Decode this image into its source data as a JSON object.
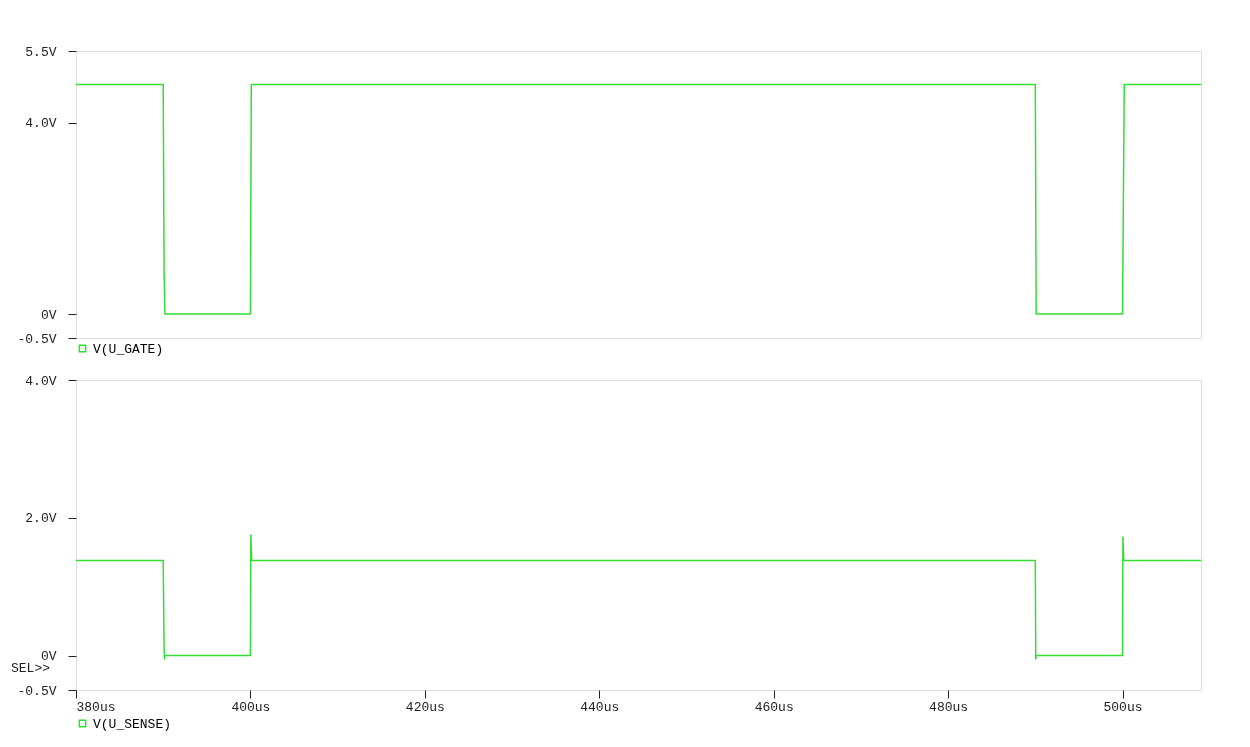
{
  "chart_data": [
    {
      "type": "line",
      "x": [
        380,
        390,
        390.1,
        390.2,
        400,
        400.1,
        490,
        490.1,
        500,
        500.2,
        509
      ],
      "series": [
        {
          "name": "V(U_GATE)",
          "color": "#33dd33",
          "values": [
            4.8,
            4.8,
            0.9,
            0,
            0,
            4.8,
            4.8,
            0,
            0,
            4.8,
            4.8
          ]
        }
      ],
      "xlim": [
        380,
        509
      ],
      "ylim": [
        -0.5,
        5.5
      ],
      "yticks": [
        {
          "value": -0.5,
          "label": "-0.5V"
        },
        {
          "value": 0,
          "label": "0V"
        },
        {
          "value": 4.0,
          "label": "4.0V"
        },
        {
          "value": 5.5,
          "label": "5.5V"
        }
      ],
      "tick_labels": "y",
      "legend": "bottom",
      "marker": "none",
      "line_style": "solid"
    },
    {
      "type": "line",
      "x": [
        380,
        390,
        390.1,
        390.15,
        390.2,
        400,
        400.05,
        400.15,
        490,
        490.05,
        490.1,
        500,
        500.05,
        500.15,
        509
      ],
      "series": [
        {
          "name": "V(U_SENSE)",
          "color": "#33dd33",
          "values": [
            1.38,
            1.38,
            0.1,
            -0.05,
            0,
            0,
            1.75,
            1.38,
            1.38,
            -0.05,
            0,
            0,
            1.72,
            1.38,
            1.38
          ]
        }
      ],
      "xlim": [
        380,
        509
      ],
      "ylim": [
        -0.5,
        4.0
      ],
      "xticks": [
        {
          "value": 380,
          "label": "380us"
        },
        {
          "value": 400,
          "label": "400us"
        },
        {
          "value": 420,
          "label": "420us"
        },
        {
          "value": 440,
          "label": "440us"
        },
        {
          "value": 460,
          "label": "460us"
        },
        {
          "value": 480,
          "label": "480us"
        },
        {
          "value": 500,
          "label": "500us"
        }
      ],
      "yticks": [
        {
          "value": -0.5,
          "label": "-0.5V"
        },
        {
          "value": 0,
          "label": "0V"
        },
        {
          "value": 2.0,
          "label": "2.0V"
        },
        {
          "value": 4.0,
          "label": "4.0V"
        }
      ],
      "annotations": [
        "SEL>>"
      ],
      "legend": "bottom",
      "marker": "none",
      "line_style": "solid"
    }
  ]
}
